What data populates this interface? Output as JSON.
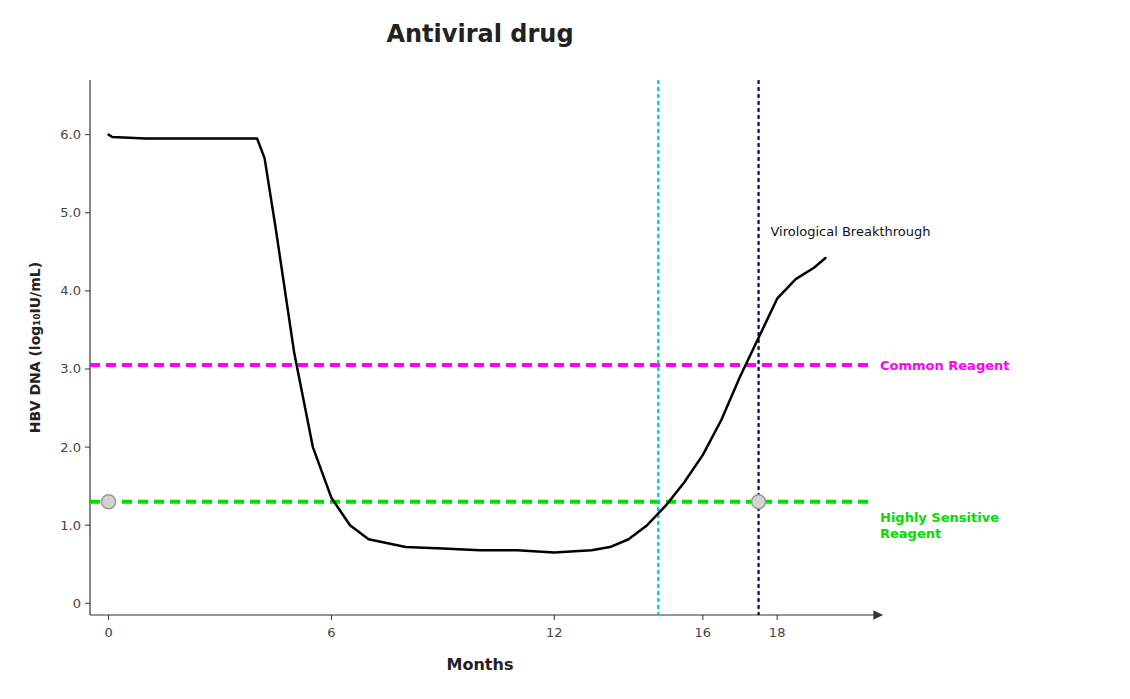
{
  "chart_data": {
    "type": "line",
    "title": "Antiviral drug",
    "x_label": "Months",
    "y_label": "HBV DNA (log₁₀IU/mL)",
    "xlim": [
      -0.5,
      20.5
    ],
    "ylim": [
      -0.15,
      6.7
    ],
    "xticks": [
      0,
      6,
      12,
      16,
      18
    ],
    "yticks": [
      0,
      {
        "value": 1.0,
        "label": "1.0"
      },
      {
        "value": 2.0,
        "label": "2.0"
      },
      {
        "value": 3.0,
        "label": "3.0"
      },
      {
        "value": 4.0,
        "label": "4.0"
      },
      {
        "value": 5.0,
        "label": "5.0"
      },
      {
        "value": 6.0,
        "label": "6.0"
      }
    ],
    "grid": false,
    "series": [
      {
        "type": "line",
        "color": "black",
        "line_style": "solid",
        "x": [
          0,
          0.1,
          1,
          2,
          3,
          4,
          4.2,
          4.5,
          5.0,
          5.5,
          6.0,
          6.5,
          7,
          8,
          9,
          10,
          11,
          12,
          13,
          13.5,
          14,
          14.5,
          15.0,
          15.5,
          16.0,
          16.5,
          17.0,
          17.5,
          18.0,
          18.5,
          19.0,
          19.3
        ],
        "values": [
          6.0,
          5.97,
          5.95,
          5.95,
          5.95,
          5.95,
          5.7,
          4.8,
          3.2,
          2.0,
          1.35,
          1.0,
          0.82,
          0.72,
          0.7,
          0.68,
          0.68,
          0.65,
          0.68,
          0.72,
          0.82,
          1.0,
          1.25,
          1.55,
          1.9,
          2.35,
          2.9,
          3.4,
          3.9,
          4.15,
          4.3,
          4.42
        ]
      },
      {
        "type": "scatter",
        "color": "lightgray",
        "marker": "circle",
        "x": [
          0,
          17.5
        ],
        "values": [
          1.3,
          1.3
        ]
      }
    ],
    "hlines": [
      {
        "value": 3.05,
        "color": "#FF00FF",
        "line_style": "dashed",
        "label": "Common Reagent"
      },
      {
        "value": 1.3,
        "color": "#00DD00",
        "line_style": "dashed",
        "label": "Highly Sensitive\nReagent"
      }
    ],
    "vlines": [
      {
        "value": 14.8,
        "color": "#00CED1",
        "line_style": "dotted"
      },
      {
        "value": 17.5,
        "color": "#191970",
        "line_style": "dotted"
      }
    ],
    "annotations": [
      {
        "text": "Virological Breakthrough"
      }
    ]
  }
}
